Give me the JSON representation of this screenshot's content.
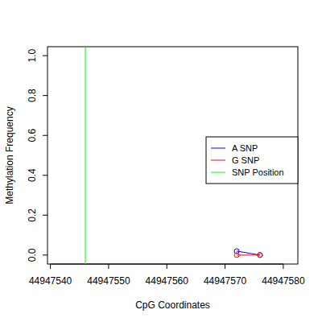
{
  "chart_data": {
    "type": "line",
    "x_label": "CpG Coordinates",
    "y_label": "Methylation Frequency",
    "xlim": [
      44947539.5,
      44947582.5
    ],
    "xticks": [
      44947540,
      44947550,
      44947560,
      44947570,
      44947580
    ],
    "ylim": [
      -0.045,
      1.045
    ],
    "yticks": [
      {
        "value": 0,
        "label": "0.0"
      },
      {
        "value": 0.2,
        "label": "0.2"
      },
      {
        "value": 0.4,
        "label": "0.4"
      },
      {
        "value": 0.6,
        "label": "0.6"
      },
      {
        "value": 0.8,
        "label": "0.8"
      },
      {
        "value": 1,
        "label": "1.0"
      }
    ],
    "legend": "right",
    "marker": "circle-open",
    "series": [
      {
        "name": "A SNP",
        "color": "#0000ff",
        "x": [
          44947572,
          44947576
        ],
        "values": [
          0.02,
          0.0
        ]
      },
      {
        "name": "G SNP",
        "color": "#ff0000",
        "x": [
          44947572,
          44947576
        ],
        "values": [
          0.0,
          0.0
        ]
      },
      {
        "name": "SNP Position",
        "color": "#00ff00",
        "type": "vline",
        "x": [
          44947546
        ]
      }
    ]
  }
}
